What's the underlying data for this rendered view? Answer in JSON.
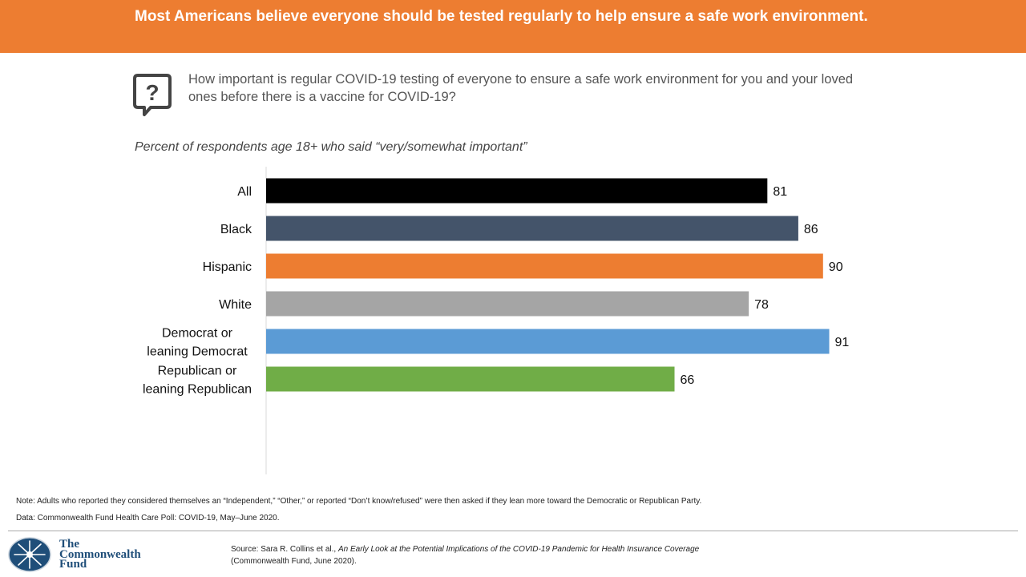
{
  "header": {
    "title": "Most Americans believe everyone should be tested regularly to help ensure a safe work environment."
  },
  "question": {
    "icon": "question-bubble-icon",
    "text": "How important is regular COVID-19 testing of everyone to ensure a safe work environment for you and your loved ones before there is a vaccine for COVID-19?"
  },
  "subtitle": "Percent of respondents age 18+ who said “very/somewhat important”",
  "chart_data": {
    "type": "bar",
    "orientation": "horizontal",
    "title": "Percent of respondents age 18+ who said “very/somewhat important”",
    "xlabel": "",
    "ylabel": "",
    "xlim": [
      0,
      100
    ],
    "grid": false,
    "legend": "none",
    "groups": [
      {
        "name": "overall",
        "items": [
          {
            "label": "All",
            "value": 81,
            "color": "#000000"
          }
        ]
      },
      {
        "name": "race",
        "items": [
          {
            "label": "Black",
            "value": 86,
            "color": "#44546a"
          },
          {
            "label": "Hispanic",
            "value": 90,
            "color": "#ed7d31"
          },
          {
            "label": "White",
            "value": 78,
            "color": "#a5a5a5"
          }
        ]
      },
      {
        "name": "party",
        "items": [
          {
            "label": "Democrat or leaning Democrat",
            "lines": [
              "Democrat or",
              "leaning Democrat"
            ],
            "value": 91,
            "color": "#5b9bd5"
          },
          {
            "label": "Republican or leaning Republican",
            "lines": [
              "Republican or",
              "leaning Republican"
            ],
            "value": 66,
            "color": "#70ad47"
          }
        ]
      }
    ],
    "categories": [
      "All",
      "Black",
      "Hispanic",
      "White",
      "Democrat or leaning Democrat",
      "Republican or leaning Republican"
    ],
    "values": [
      81,
      86,
      90,
      78,
      91,
      66
    ]
  },
  "footer": {
    "note": "Note: Adults who reported they considered themselves an “Independent,” “Other,” or reported “Don’t know/refused” were then asked if they lean more toward the Democratic or Republican Party.",
    "data": "Data: Commonwealth Fund Health Care Poll: COVID-19, May–June 2020.",
    "source_prefix": "Source: Sara R. Collins et al., ",
    "source_title": "An Early Look at the Potential Implications of the COVID-19 Pandemic for Health Insurance Coverage",
    "source_suffix": "(Commonwealth Fund, June 2020).",
    "logo_lines": [
      "The",
      "Commonwealth",
      "Fund"
    ],
    "brand_color": "#1f4e79"
  },
  "colors": {
    "banner": "#ed7d31"
  }
}
